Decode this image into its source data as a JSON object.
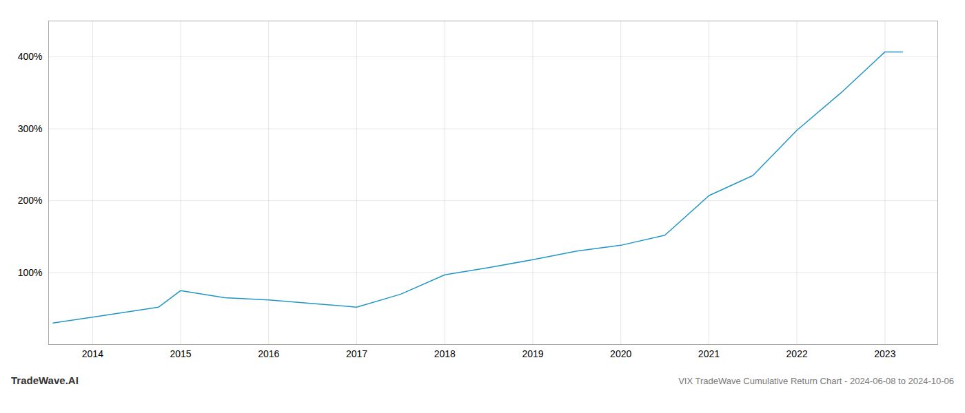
{
  "chart_data": {
    "type": "line",
    "title": "VIX TradeWave Cumulative Return Chart - 2024-06-08 to 2024-10-06",
    "annotations": [
      "TradeWave.AI"
    ],
    "x": [
      2013.55,
      2014.0,
      2014.75,
      2015.0,
      2015.5,
      2016.0,
      2016.5,
      2017.0,
      2017.5,
      2018.0,
      2018.5,
      2019.0,
      2019.5,
      2020.0,
      2020.5,
      2021.0,
      2021.5,
      2022.0,
      2022.5,
      2023.0,
      2023.2
    ],
    "values": [
      30,
      38,
      52,
      75,
      65,
      62,
      57,
      52,
      70,
      97,
      107,
      118,
      130,
      138,
      152,
      207,
      235,
      298,
      350,
      407,
      407
    ],
    "color": "#2196c4",
    "xlim": [
      2013.5,
      2023.6
    ],
    "xticks": [
      2014,
      2015,
      2016,
      2017,
      2018,
      2019,
      2020,
      2021,
      2022,
      2023
    ],
    "ylim": [
      0,
      450
    ],
    "yticks": [
      {
        "value": 100,
        "label": "100%"
      },
      {
        "value": 200,
        "label": "200%"
      },
      {
        "value": 300,
        "label": "300%"
      },
      {
        "value": 400,
        "label": "400%"
      }
    ],
    "grid": true
  }
}
